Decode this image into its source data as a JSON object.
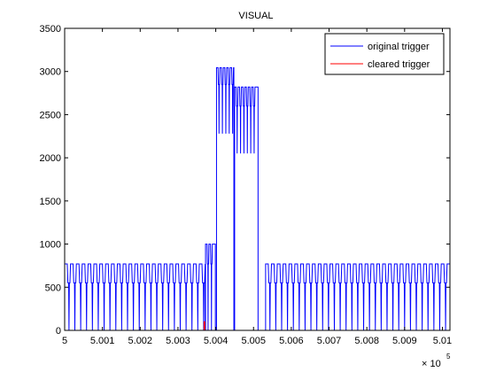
{
  "chart_data": {
    "type": "line",
    "title": "VISUAL",
    "xlabel": "",
    "ylabel": "",
    "xlim": [
      500000,
      501020
    ],
    "ylim": [
      0,
      3500
    ],
    "x_multiplier_label": "× 10",
    "x_multiplier_exponent": "5",
    "x_ticks": [
      500000,
      500100,
      500200,
      500300,
      500400,
      500500,
      500600,
      500700,
      500800,
      500900,
      501000
    ],
    "x_tick_labels": [
      "5",
      "5.001",
      "5.002",
      "5.003",
      "5.004",
      "5.005",
      "5.006",
      "5.007",
      "5.008",
      "5.009",
      "5.01"
    ],
    "y_ticks": [
      0,
      500,
      1000,
      1500,
      2000,
      2500,
      3000,
      3500
    ],
    "y_tick_labels": [
      "0",
      "500",
      "1000",
      "1500",
      "2000",
      "2500",
      "3000",
      "3500"
    ],
    "grid": false,
    "legend_position": "top-right",
    "series": [
      {
        "name": "original trigger",
        "color": "#0000ff",
        "segments": [
          {
            "x_start": 500000,
            "x_end": 500372,
            "pulse_period": 15.5,
            "high": 770,
            "mid": 550,
            "low": 0
          },
          {
            "x_start": 500373,
            "x_end": 500399,
            "pulse_period": 9,
            "high": 1000,
            "mid": 770,
            "low": 0
          },
          {
            "x_start": 500402,
            "x_end": 500448,
            "pulse_period": 9,
            "high": 3045,
            "mid": 2850,
            "low": 2280
          },
          {
            "x_start": 500450,
            "x_end": 500512,
            "pulse_period": 9,
            "high": 2820,
            "mid": 2600,
            "low": 2050
          },
          {
            "x_start": 500532,
            "x_end": 501020,
            "pulse_period": 15.5,
            "high": 770,
            "mid": 550,
            "low": 0
          }
        ]
      },
      {
        "name": "cleared trigger",
        "color": "#ff0000",
        "points": [
          [
            500000,
            0
          ],
          [
            500369,
            0
          ],
          [
            500369,
            100
          ],
          [
            500371,
            100
          ],
          [
            500371,
            0
          ],
          [
            501020,
            0
          ]
        ]
      }
    ]
  }
}
